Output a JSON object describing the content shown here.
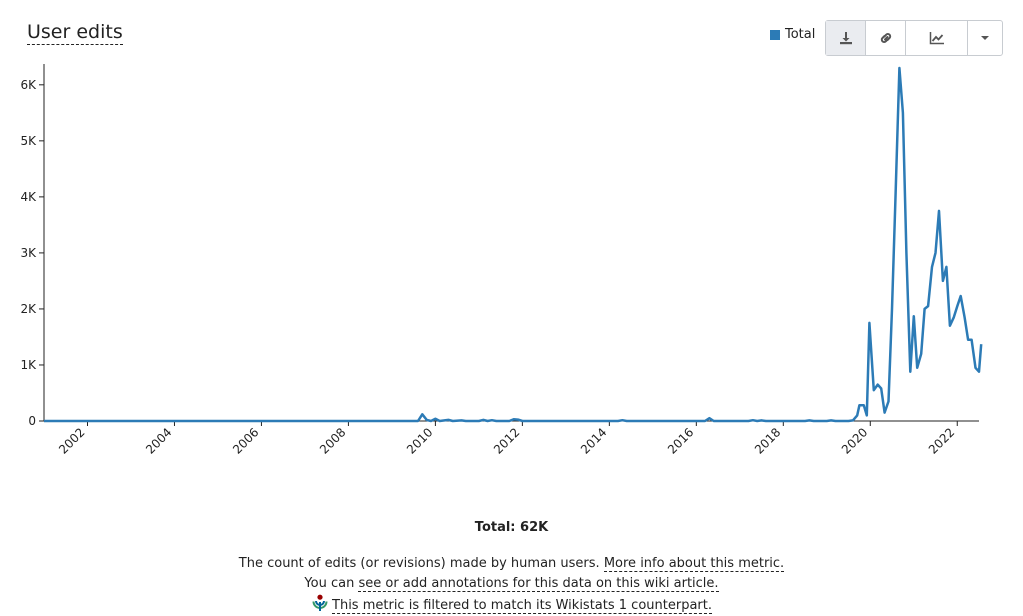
{
  "header": {
    "title": "User edits"
  },
  "legend": {
    "label": "Total",
    "color": "#2c7bb6"
  },
  "toolbar": {
    "buttons": [
      {
        "name": "download",
        "icon": "download-icon"
      },
      {
        "name": "link",
        "icon": "link-icon"
      },
      {
        "name": "chart-type",
        "icon": "line-chart-icon"
      },
      {
        "name": "more",
        "icon": "caret-down-icon"
      }
    ]
  },
  "summary": {
    "total": "Total: 62K"
  },
  "footer": {
    "line1_text": "The count of edits (or revisions) made by human users.",
    "line1_link": "More info about this metric.",
    "line2_text": "You can",
    "line2_link": "see or add annotations for this data on this wiki article.",
    "line3_link": "This metric is filtered to match its Wikistats 1 counterpart."
  },
  "chart_data": {
    "type": "line",
    "title": "User edits",
    "xlabel": "",
    "ylabel": "",
    "x_range": [
      2001.0,
      2022.5
    ],
    "ylim": [
      0,
      6300
    ],
    "y_ticks": [
      0,
      1000,
      2000,
      3000,
      4000,
      5000,
      6000
    ],
    "y_tick_labels": [
      "0",
      "1K",
      "2K",
      "3K",
      "4K",
      "5K",
      "6K"
    ],
    "x_ticks": [
      2002,
      2004,
      2006,
      2008,
      2010,
      2012,
      2014,
      2016,
      2018,
      2020,
      2022
    ],
    "x_tick_labels": [
      "2002",
      "2004",
      "2006",
      "2008",
      "2010",
      "2012",
      "2014",
      "2016",
      "2018",
      "2020",
      "2022"
    ],
    "grid": false,
    "legend_position": "top-right",
    "series": [
      {
        "name": "Total",
        "color": "#2c7bb6",
        "points": [
          [
            2001.0,
            0
          ],
          [
            2009.6,
            0
          ],
          [
            2009.7,
            120
          ],
          [
            2009.8,
            20
          ],
          [
            2009.9,
            0
          ],
          [
            2010.0,
            40
          ],
          [
            2010.1,
            0
          ],
          [
            2010.3,
            20
          ],
          [
            2010.4,
            0
          ],
          [
            2010.6,
            10
          ],
          [
            2010.7,
            0
          ],
          [
            2011.0,
            0
          ],
          [
            2011.1,
            20
          ],
          [
            2011.2,
            0
          ],
          [
            2011.3,
            15
          ],
          [
            2011.4,
            0
          ],
          [
            2011.7,
            0
          ],
          [
            2011.8,
            30
          ],
          [
            2011.9,
            25
          ],
          [
            2012.0,
            0
          ],
          [
            2014.2,
            0
          ],
          [
            2014.3,
            15
          ],
          [
            2014.4,
            0
          ],
          [
            2016.2,
            0
          ],
          [
            2016.3,
            50
          ],
          [
            2016.4,
            0
          ],
          [
            2017.2,
            0
          ],
          [
            2017.3,
            15
          ],
          [
            2017.4,
            0
          ],
          [
            2017.5,
            10
          ],
          [
            2017.6,
            0
          ],
          [
            2018.5,
            0
          ],
          [
            2018.6,
            10
          ],
          [
            2018.7,
            0
          ],
          [
            2019.0,
            0
          ],
          [
            2019.1,
            10
          ],
          [
            2019.2,
            0
          ],
          [
            2019.5,
            0
          ],
          [
            2019.6,
            10
          ],
          [
            2019.7,
            100
          ],
          [
            2019.75,
            280
          ],
          [
            2019.85,
            280
          ],
          [
            2019.92,
            100
          ],
          [
            2019.98,
            1750
          ],
          [
            2020.08,
            550
          ],
          [
            2020.17,
            650
          ],
          [
            2020.25,
            580
          ],
          [
            2020.33,
            150
          ],
          [
            2020.42,
            350
          ],
          [
            2020.5,
            2000
          ],
          [
            2020.58,
            4000
          ],
          [
            2020.67,
            6300
          ],
          [
            2020.75,
            5500
          ],
          [
            2020.83,
            3000
          ],
          [
            2020.92,
            880
          ],
          [
            2021.0,
            1870
          ],
          [
            2021.08,
            950
          ],
          [
            2021.17,
            1200
          ],
          [
            2021.25,
            2000
          ],
          [
            2021.33,
            2050
          ],
          [
            2021.42,
            2750
          ],
          [
            2021.5,
            3000
          ],
          [
            2021.58,
            3750
          ],
          [
            2021.67,
            2500
          ],
          [
            2021.75,
            2750
          ],
          [
            2021.83,
            1700
          ],
          [
            2021.92,
            1850
          ],
          [
            2022.0,
            2050
          ],
          [
            2022.08,
            2230
          ],
          [
            2022.17,
            1850
          ],
          [
            2022.25,
            1450
          ],
          [
            2022.33,
            1450
          ],
          [
            2022.42,
            950
          ],
          [
            2022.5,
            880
          ],
          [
            2022.55,
            1370
          ]
        ]
      }
    ]
  }
}
